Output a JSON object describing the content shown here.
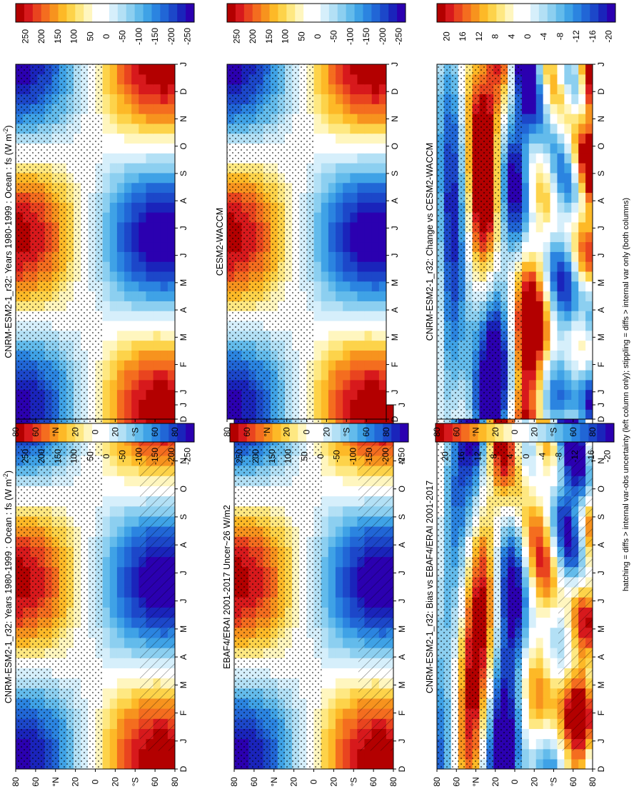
{
  "chart_data": {
    "type": "heatmap",
    "orientation": "rotated-90-ccw",
    "footnote": "hatching = diffs > internal var-obs uncertainty (left column only); stippling = diffs > internal var only (both columns)",
    "months": [
      "D",
      "J",
      "F",
      "M",
      "A",
      "M",
      "J",
      "J",
      "A",
      "S",
      "O",
      "N",
      "D",
      "J"
    ],
    "lat_ticks": [
      "80",
      "60",
      "°N",
      "20",
      "0",
      "20",
      "°S",
      "60",
      "80"
    ],
    "panels": [
      {
        "id": "left-top",
        "title": "CNRM-ESM2-1_r32: Years 1980-1999 : Ocean : fs (W m",
        "title_sup": "-2",
        "title_end": ")",
        "palette": "bias-red-blue",
        "colorbar_ticks": [
          "250",
          "200",
          "150",
          "100",
          "50",
          "0",
          "-50",
          "-100",
          "-150",
          "-200",
          "-250"
        ],
        "hatching": true,
        "stippling": true,
        "kind": "climatology"
      },
      {
        "id": "left-mid",
        "title": "EBAF4/ERAI 2001-2017 Uncer~26 W/m2",
        "palette": "bias-red-blue",
        "colorbar_ticks": [
          "250",
          "200",
          "150",
          "100",
          "50",
          "0",
          "-50",
          "-100",
          "-150",
          "-200",
          "-250"
        ],
        "hatching": true,
        "stippling": true,
        "kind": "climatology"
      },
      {
        "id": "left-bot",
        "title": "CNRM-ESM2-1_r32: Bias vs EBAF4/ERAI 2001-2017",
        "palette": "bias-red-blue",
        "colorbar_ticks": [
          "20",
          "16",
          "12",
          "8",
          "4",
          "0",
          "-4",
          "-8",
          "-12",
          "-16",
          "-20"
        ],
        "hatching": true,
        "stippling": true,
        "kind": "difference"
      },
      {
        "id": "right-top",
        "title": "CNRM-ESM2-1_r32: Years 1980-1999 : Ocean : fs (W m",
        "title_sup": "-2",
        "title_end": ")",
        "palette": "bias-red-blue",
        "colorbar_ticks": [
          "250",
          "200",
          "150",
          "100",
          "50",
          "0",
          "-50",
          "-100",
          "-150",
          "-200",
          "-250"
        ],
        "hatching": false,
        "stippling": true,
        "kind": "climatology"
      },
      {
        "id": "right-mid",
        "title": "CESM2-WACCM",
        "palette": "bias-red-blue",
        "colorbar_ticks": [
          "250",
          "200",
          "150",
          "100",
          "50",
          "0",
          "-50",
          "-100",
          "-150",
          "-200",
          "-250"
        ],
        "hatching": false,
        "stippling": true,
        "kind": "climatology"
      },
      {
        "id": "right-bot",
        "title": "CNRM-ESM2-1_r32: Change vs CESM2-WACCM",
        "palette": "bias-red-blue",
        "colorbar_ticks": [
          "20",
          "16",
          "12",
          "8",
          "4",
          "0",
          "-4",
          "-8",
          "-12",
          "-16",
          "-20"
        ],
        "hatching": false,
        "stippling": true,
        "kind": "difference"
      }
    ],
    "colors": [
      "#b30000",
      "#d7191c",
      "#e9441f",
      "#f46d1f",
      "#f7931e",
      "#fdb927",
      "#fdd34a",
      "#fee882",
      "#fff6bf",
      "#ffffff",
      "#ffffff",
      "#d6effb",
      "#b3e0f5",
      "#8ccff0",
      "#63bbeb",
      "#3fa2e6",
      "#2b84e0",
      "#2166d6",
      "#1c47c9",
      "#1a24bb",
      "#2b00b0"
    ]
  }
}
